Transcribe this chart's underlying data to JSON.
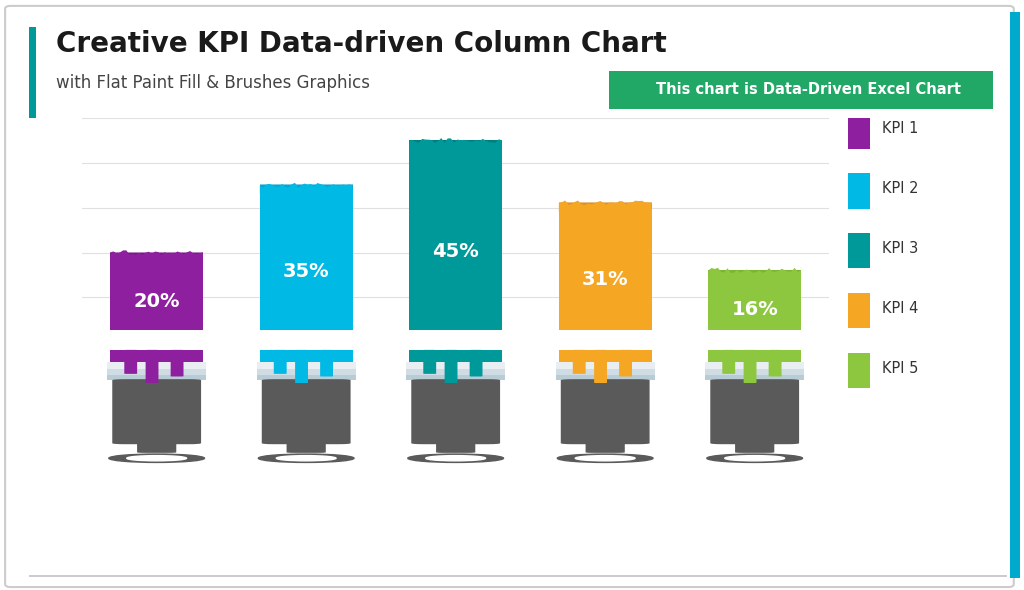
{
  "title": "Creative KPI Data-driven Column Chart",
  "subtitle": "with Flat Paint Fill & Brushes Graphics",
  "banner_text": "This chart is Data-Driven Excel Chart",
  "banner_color": "#22a866",
  "kpis": [
    "KPI 1",
    "KPI 2",
    "KPI 3",
    "KPI 4",
    "KPI 5"
  ],
  "values": [
    20,
    35,
    45,
    31,
    16
  ],
  "labels": [
    "20%",
    "35%",
    "45%",
    "31%",
    "16%"
  ],
  "colors": [
    "#8e1f9e",
    "#00b9e4",
    "#009999",
    "#f5a623",
    "#8dc63f"
  ],
  "dark_colors": [
    "#6e0e7e",
    "#0099c4",
    "#006666",
    "#d08010",
    "#6da61f"
  ],
  "background_color": "#ffffff",
  "grid_color": "#e0e0e0",
  "accent_color": "#009999",
  "right_accent_color": "#00aacc"
}
